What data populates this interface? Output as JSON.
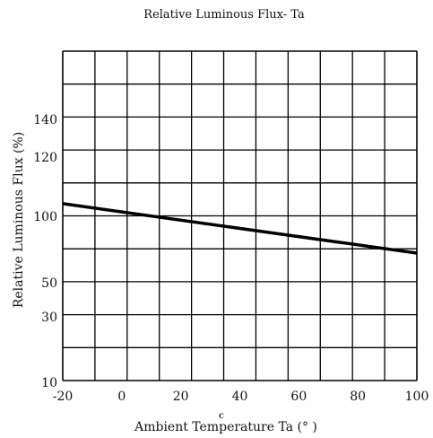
{
  "chart_data": {
    "type": "line",
    "title": "Relative Luminous Flux- Ta",
    "xlabel": "Ambient Temperature Ta (° )",
    "xlabel_mark": "C",
    "ylabel": "Relative Luminous Flux (%)",
    "xlim": [
      -20,
      100
    ],
    "x_ticks": [
      -20,
      0,
      20,
      40,
      60,
      80,
      100
    ],
    "x_tick_labels": [
      "-20",
      "0",
      "20",
      "40",
      "60",
      "80",
      "100"
    ],
    "y_tick_labels": [
      "140",
      "120",
      "100",
      "50",
      "30",
      "10"
    ],
    "grid": true,
    "series": [
      {
        "x": [
          -20,
          100
        ],
        "y": [
          105,
          84
        ]
      }
    ]
  }
}
